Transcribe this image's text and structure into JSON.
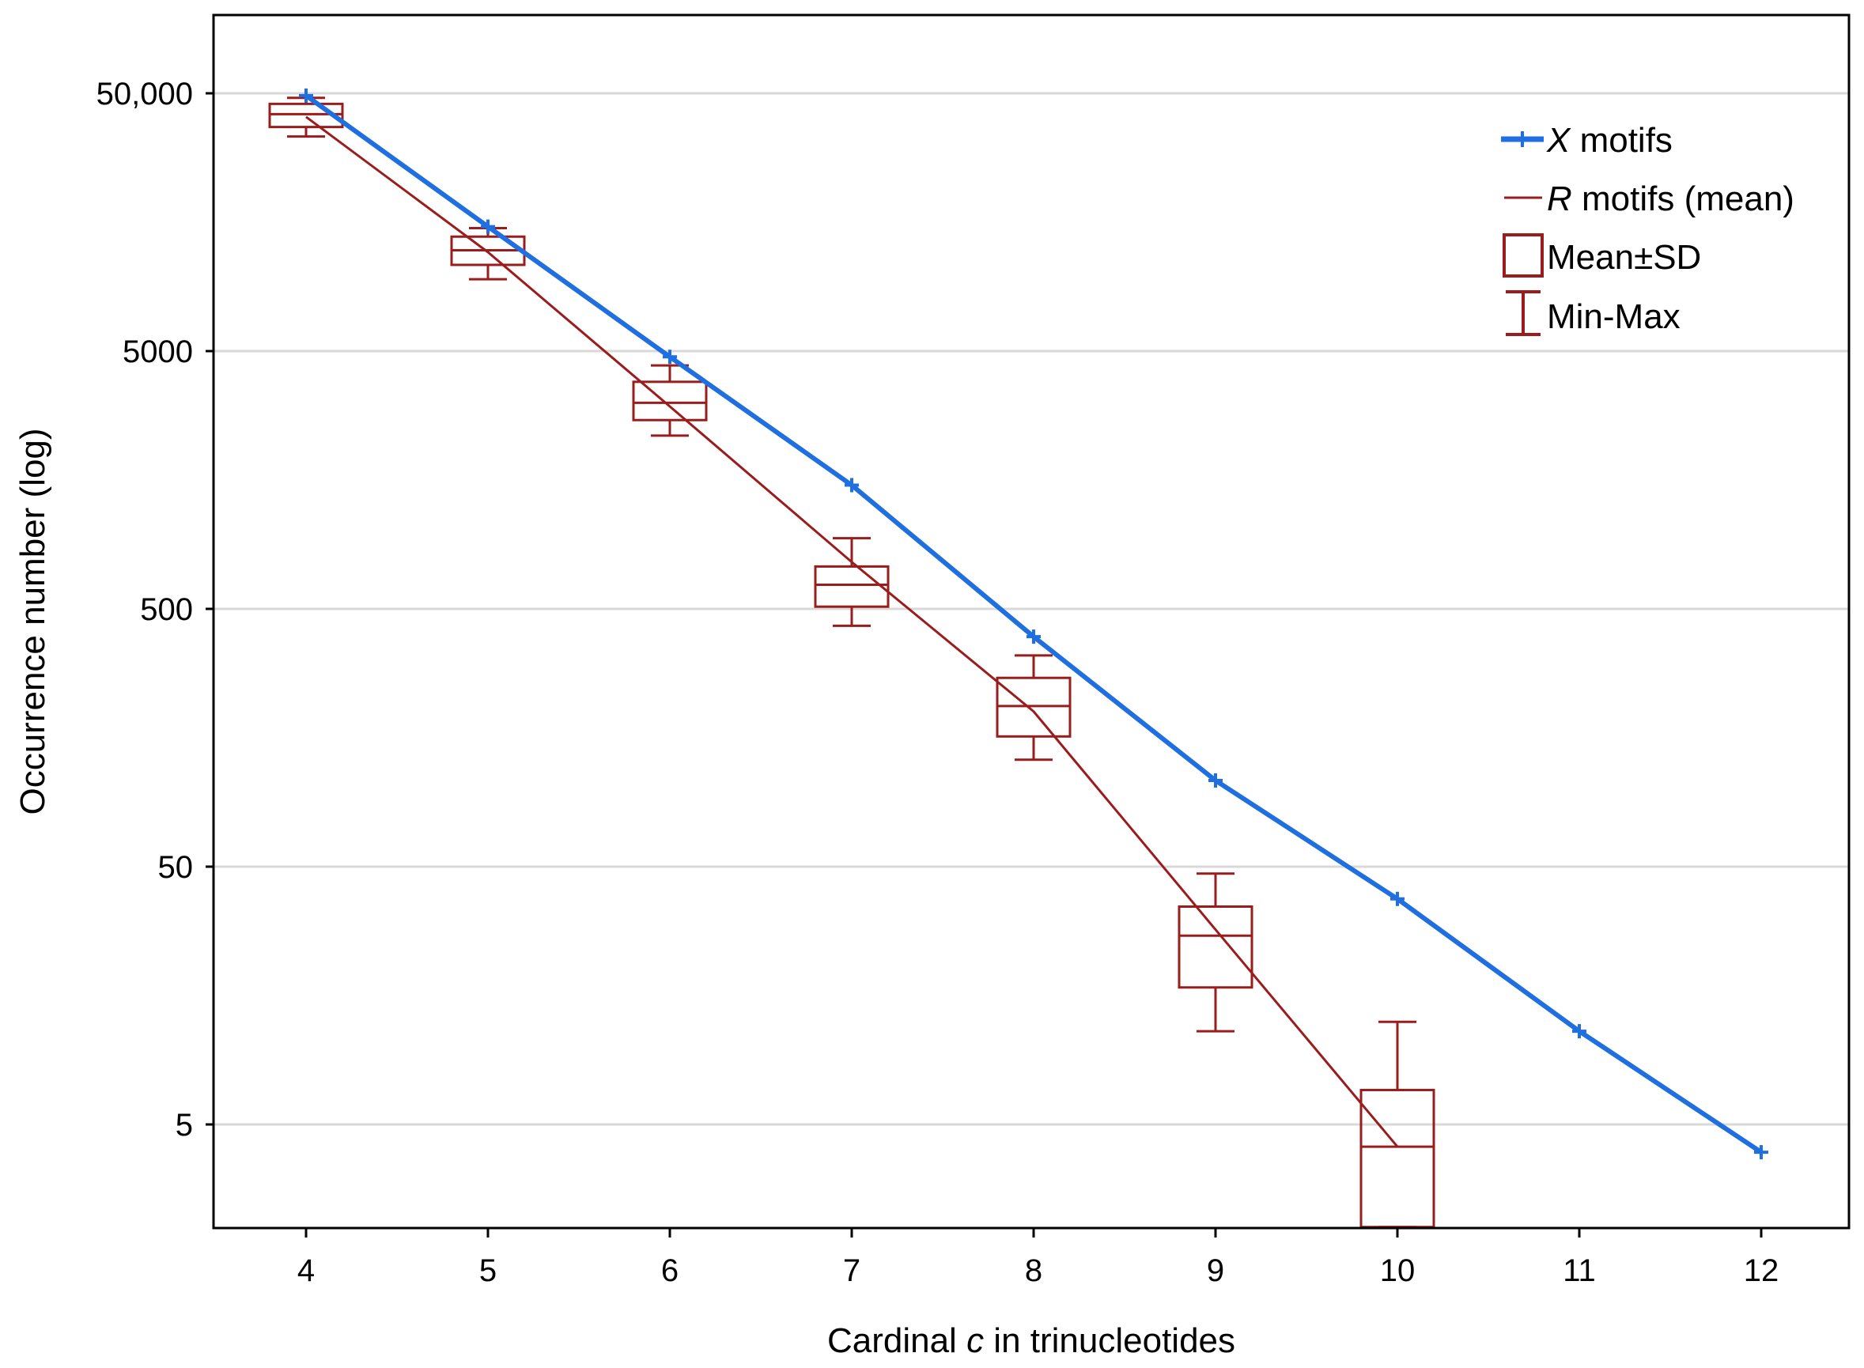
{
  "chart_data": {
    "type": "line",
    "title": "",
    "xlabel": {
      "prefix": "Cardinal ",
      "var": "c",
      "suffix": " in trinucleotides"
    },
    "ylabel": "Occurrence number (log)",
    "yscale": "log",
    "ylim": [
      2,
      80000
    ],
    "xlim": [
      3.5,
      12.5
    ],
    "xticks": [
      4,
      5,
      6,
      7,
      8,
      9,
      10,
      11,
      12
    ],
    "xtick_labels": [
      "4",
      "5",
      "6",
      "7",
      "8",
      "9",
      "10",
      "11",
      "12"
    ],
    "yticks": [
      5,
      50,
      500,
      5000,
      50000
    ],
    "ytick_labels": [
      "5",
      "50",
      "500",
      "5000",
      "50,000"
    ],
    "grid": true,
    "legend_position": "top-right",
    "series": [
      {
        "name": "X motifs",
        "legend_var": "X",
        "legend_suffix": " motifs",
        "color": "#1f6fe0",
        "x": [
          4,
          5,
          6,
          7,
          8,
          9,
          10,
          11,
          12
        ],
        "values": [
          49000,
          15200,
          4750,
          1510,
          390,
          108,
          37.5,
          11.5,
          3.9
        ]
      },
      {
        "name": "R motifs (mean)",
        "legend_var": "R",
        "legend_suffix": " motifs (mean)",
        "color": "#9b1c1c",
        "x": [
          4,
          5,
          6,
          7,
          8,
          9,
          10,
          11,
          12
        ],
        "values": [
          40500,
          12100,
          3050,
          760,
          200,
          28.5,
          4.1,
          null,
          null
        ]
      }
    ],
    "boxes": {
      "name_box": "Mean±SD",
      "name_whisker": "Min-Max",
      "color": "#9b1c1c",
      "items": [
        {
          "x": 4,
          "mean": 41500,
          "sd_low": 37000,
          "sd_high": 45500,
          "min": 34000,
          "max": 48000
        },
        {
          "x": 5,
          "mean": 12300,
          "sd_low": 10800,
          "sd_high": 13900,
          "min": 9500,
          "max": 15000
        },
        {
          "x": 6,
          "mean": 3150,
          "sd_low": 2700,
          "sd_high": 3800,
          "min": 2350,
          "max": 4400
        },
        {
          "x": 7,
          "mean": 620,
          "sd_low": 510,
          "sd_high": 730,
          "min": 430,
          "max": 940
        },
        {
          "x": 8,
          "mean": 210,
          "sd_low": 160,
          "sd_high": 270,
          "min": 130,
          "max": 330
        },
        {
          "x": 9,
          "mean": 27,
          "sd_low": 17,
          "sd_high": 35,
          "min": 11.5,
          "max": 47
        },
        {
          "x": 10,
          "mean": 4.1,
          "sd_low": 2,
          "sd_high": 6.8,
          "min": 2,
          "max": 12.5
        }
      ]
    }
  }
}
